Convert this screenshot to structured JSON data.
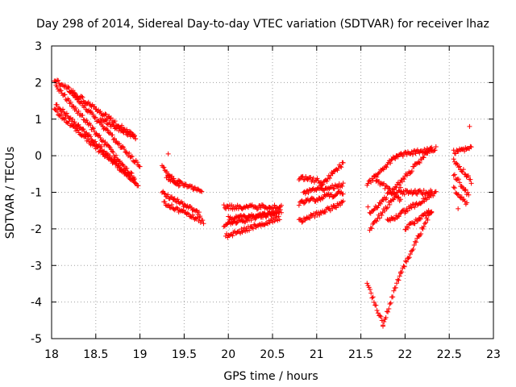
{
  "chart_data": {
    "type": "scatter",
    "title": "Day 298 of 2014, Sidereal Day-to-day VTEC variation (SDTVAR) for receiver lhaz",
    "xlabel": "GPS time / hours",
    "ylabel": "SDTVAR / TECUs",
    "xlim": [
      18,
      23
    ],
    "ylim": [
      -5,
      3
    ],
    "xticks": [
      "18",
      "18.5",
      "19",
      "19.5",
      "20",
      "20.5",
      "21",
      "21.5",
      "22",
      "22.5",
      "23"
    ],
    "yticks": [
      "-5",
      "-4",
      "-3",
      "-2",
      "-1",
      "0",
      "1",
      "2",
      "3"
    ],
    "grid": true,
    "marker": "+",
    "color": "#ff0000",
    "segments": [
      {
        "x0": 18.03,
        "x1": 18.95,
        "y0": 2.1,
        "y1": 0.5
      },
      {
        "x0": 18.05,
        "x1": 18.93,
        "y0": 1.9,
        "y1": -0.6
      },
      {
        "x0": 18.05,
        "x1": 18.95,
        "y0": 1.4,
        "y1": -0.7
      },
      {
        "x0": 18.03,
        "x1": 18.98,
        "y0": 1.25,
        "y1": -0.8
      },
      {
        "x0": 18.2,
        "x1": 19.0,
        "y0": 1.8,
        "y1": -0.3
      },
      {
        "x0": 18.55,
        "x1": 18.95,
        "y0": 1.0,
        "y1": 0.5
      },
      {
        "x0": 19.25,
        "x1": 19.68,
        "y0": -1.0,
        "y1": -1.6
      },
      {
        "x0": 19.27,
        "x1": 19.72,
        "y0": -1.3,
        "y1": -1.8
      },
      {
        "x0": 19.3,
        "x1": 19.7,
        "y0": -0.6,
        "y1": -1.0
      },
      {
        "x0": 19.25,
        "x1": 19.45,
        "y0": -0.3,
        "y1": -0.8
      },
      {
        "x0": 19.95,
        "x1": 20.6,
        "y0": -1.4,
        "y1": -1.4
      },
      {
        "x0": 19.95,
        "x1": 20.6,
        "y0": -1.9,
        "y1": -1.5
      },
      {
        "x0": 19.97,
        "x1": 20.58,
        "y0": -2.2,
        "y1": -1.7
      },
      {
        "x0": 20.0,
        "x1": 20.55,
        "y0": -1.7,
        "y1": -1.6
      },
      {
        "x0": 20.8,
        "x1": 21.3,
        "y0": -1.8,
        "y1": -1.3
      },
      {
        "x0": 20.8,
        "x1": 21.3,
        "y0": -1.3,
        "y1": -1.0
      },
      {
        "x0": 20.85,
        "x1": 21.3,
        "y0": -1.0,
        "y1": -0.8
      },
      {
        "x0": 20.8,
        "x1": 21.05,
        "y0": -0.6,
        "y1": -0.7
      },
      {
        "x0": 21.05,
        "x1": 21.3,
        "y0": -0.8,
        "y1": -0.2
      },
      {
        "x0": 21.57,
        "x1": 21.9,
        "y0": -0.8,
        "y1": 0.0
      },
      {
        "x0": 21.9,
        "x1": 22.35,
        "y0": 0.0,
        "y1": 0.2
      },
      {
        "x0": 21.6,
        "x1": 22.3,
        "y0": -1.6,
        "y1": 0.2
      },
      {
        "x0": 21.6,
        "x1": 21.95,
        "y0": -2.0,
        "y1": -0.9
      },
      {
        "x0": 21.65,
        "x1": 21.95,
        "y0": -0.6,
        "y1": -1.2
      },
      {
        "x0": 21.95,
        "x1": 22.3,
        "y0": -1.0,
        "y1": -1.0
      },
      {
        "x0": 21.8,
        "x1": 22.35,
        "y0": -1.8,
        "y1": -1.0
      },
      {
        "x0": 22.0,
        "x1": 22.3,
        "y0": -2.0,
        "y1": -1.5
      },
      {
        "x0": 21.57,
        "x1": 21.75,
        "y0": -3.5,
        "y1": -4.6
      },
      {
        "x0": 21.75,
        "x1": 21.95,
        "y0": -4.6,
        "y1": -3.2
      },
      {
        "x0": 21.95,
        "x1": 22.3,
        "y0": -3.2,
        "y1": -1.5
      },
      {
        "x0": 22.55,
        "x1": 22.75,
        "y0": 0.1,
        "y1": 0.2
      },
      {
        "x0": 22.55,
        "x1": 22.72,
        "y0": -0.5,
        "y1": -1.1
      },
      {
        "x0": 22.55,
        "x1": 22.7,
        "y0": -0.9,
        "y1": -1.3
      },
      {
        "x0": 22.55,
        "x1": 22.75,
        "y0": -0.1,
        "y1": -0.7
      }
    ],
    "outliers": [
      {
        "x": 22.73,
        "y": 0.8
      },
      {
        "x": 19.32,
        "y": 0.05
      },
      {
        "x": 21.58,
        "y": -1.4
      },
      {
        "x": 22.16,
        "y": -1.7
      },
      {
        "x": 22.6,
        "y": -1.45
      }
    ]
  }
}
